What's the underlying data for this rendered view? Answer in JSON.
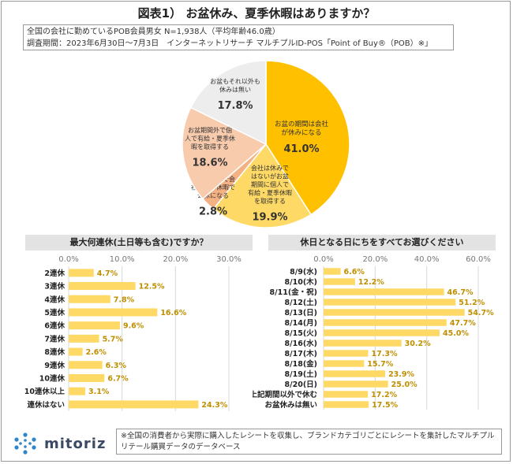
{
  "title": "図表1） お盆休み、夏季休暇はありますか？",
  "note": {
    "line1": "全国の会社に勤めているPOB会員男女 N=1,938人（平均年齢46.0歳）",
    "line2": "調査期間：2023年6月30日～7月3日　インターネットリサーチ マルチプルID-POS「Point of Buy®（POB）※」"
  },
  "footnote": "※全国の消費者から実際に購入したレシートを収集し、ブランドカテゴリごとにレシートを集計したマルチプルリテール購買データのデータベース",
  "logo_text": "mitoriz",
  "colors": {
    "gold": "#FFC000",
    "pale_gold": "#FFD966",
    "light_yellow": "#FFE699",
    "salmon": "#F8CBAD",
    "peach": "#F4B183",
    "gray": "#EDEDED",
    "banner": "#E3E3E3",
    "axis_text": "#777777",
    "value_text": "#BF8F00"
  },
  "chart_data": [
    {
      "type": "pie",
      "slices": [
        {
          "label": "お盆の期間は会社が休みになる",
          "value": 41.0,
          "color": "#FFC000"
        },
        {
          "label": "会社は休みではないがお盆期間に個人で有給・夏季休暇を取得する",
          "value": 19.9,
          "color": "#FFD966"
        },
        {
          "label": "お盆期間外で会社が夏季休暇で公休になる",
          "value": 2.8,
          "color": "#F4B183"
        },
        {
          "label": "お盆期間外で個人で有給・夏季休暇を取得する",
          "value": 18.6,
          "color": "#F8CBAD"
        },
        {
          "label": "お盆もそれ以外も休みは無い",
          "value": 17.8,
          "color": "#EDEDED"
        }
      ]
    },
    {
      "type": "bar",
      "title": "最大何連休(土日等も含む)ですか？",
      "categories": [
        "2連休",
        "3連休",
        "4連休",
        "5連休",
        "6連休",
        "7連休",
        "8連休",
        "9連休",
        "10連休",
        "10連休以上",
        "連休はない"
      ],
      "values": [
        4.7,
        12.5,
        7.8,
        16.6,
        9.6,
        5.7,
        2.6,
        6.3,
        6.7,
        3.1,
        24.3
      ],
      "ticks": [
        "0.0%",
        "10.0%",
        "20.0%",
        "30.0%"
      ],
      "xlim": [
        0,
        30
      ]
    },
    {
      "type": "bar",
      "title": "休日となる日にちをすべてお選びください",
      "categories": [
        "8/9(水)",
        "8/10(木)",
        "8/11(金・祝)",
        "8/12(土)",
        "8/13(日)",
        "8/14(月)",
        "8/15(火)",
        "8/16(水)",
        "8/17(木)",
        "8/18(金)",
        "8/19(土)",
        "8/20(日)",
        "上記期間以外で休む",
        "お盆休みは無い"
      ],
      "values": [
        6.6,
        12.2,
        46.7,
        51.2,
        54.7,
        47.7,
        45.0,
        30.2,
        17.3,
        15.7,
        23.9,
        25.0,
        17.2,
        17.5
      ],
      "ticks": [
        "0.0%",
        "20.0%",
        "40.0%",
        "60.0%"
      ],
      "xlim": [
        0,
        60
      ]
    }
  ]
}
